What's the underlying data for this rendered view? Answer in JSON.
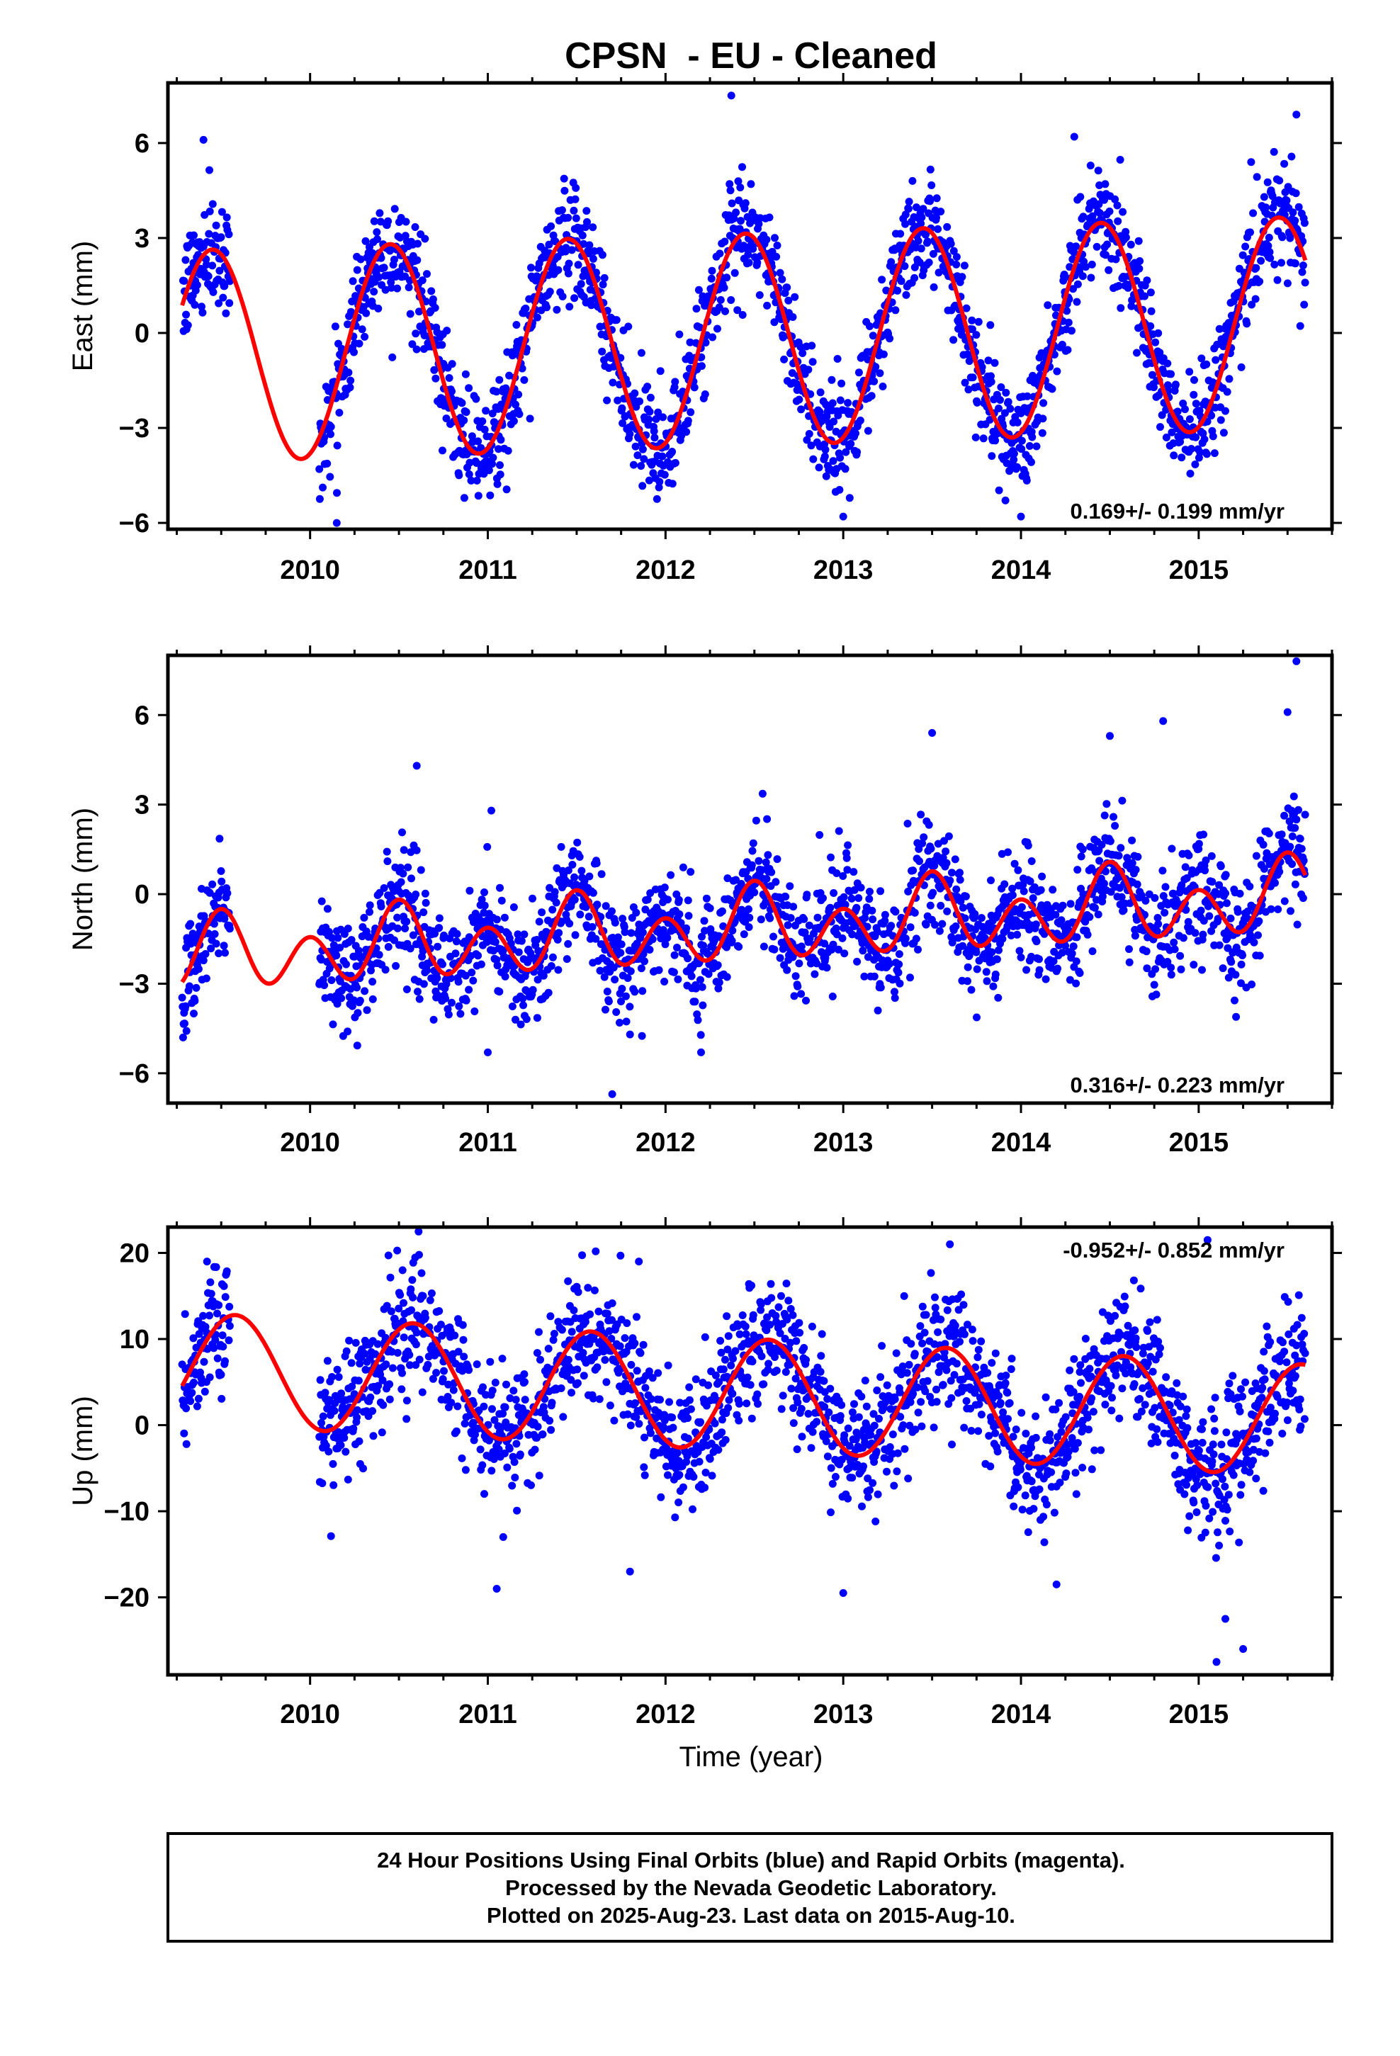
{
  "title": "CPSN  - EU - Cleaned",
  "colors": {
    "points": "#0000ff",
    "model": "#ff0000",
    "frame": "#000000"
  },
  "xlabel": "Time (year)",
  "footer": {
    "line1": "24 Hour Positions Using Final Orbits (blue) and Rapid Orbits (magenta).",
    "line2": "Processed by the Nevada Geodetic Laboratory.",
    "line3": "Plotted on 2025-Aug-23. Last data on 2015-Aug-10."
  },
  "chart_data": [
    {
      "type": "scatter",
      "name": "east",
      "ylabel": "East (mm)",
      "xlim": [
        2009.2,
        2015.75
      ],
      "ylim": [
        -6.2,
        7.9
      ],
      "xticks": [
        2010,
        2011,
        2012,
        2013,
        2014,
        2015
      ],
      "yticks": [
        -6,
        -3,
        0,
        3,
        6
      ],
      "rate_text": "0.169+/- 0.199 mm/yr",
      "data_start": 2009.28,
      "data_gap": [
        2009.55,
        2010.05
      ],
      "data_end": 2015.6,
      "model": {
        "offset": -0.2,
        "trend": 0.169,
        "annual_amp": 3.35,
        "annual_peak": 0.45,
        "semi_amp": 0.0,
        "semi_peak": 0.0
      },
      "scatter_sd": 0.85,
      "outliers": [
        [
          2009.4,
          6.1
        ],
        [
          2012.37,
          7.5
        ],
        [
          2013.0,
          -5.8
        ],
        [
          2014.3,
          6.2
        ],
        [
          2015.55,
          6.9
        ],
        [
          2010.15,
          -6.0
        ],
        [
          2014.0,
          -5.8
        ]
      ]
    },
    {
      "type": "scatter",
      "name": "north",
      "ylabel": "North (mm)",
      "xlim": [
        2009.2,
        2015.75
      ],
      "ylim": [
        -7.0,
        8.0
      ],
      "xticks": [
        2010,
        2011,
        2012,
        2013,
        2014,
        2015
      ],
      "yticks": [
        -6,
        -3,
        0,
        3,
        6
      ],
      "rate_text": "0.316+/- 0.223 mm/yr",
      "data_start": 2009.28,
      "data_gap": [
        2009.55,
        2010.05
      ],
      "data_end": 2015.6,
      "model": {
        "offset": -1.1,
        "trend": 0.316,
        "annual_amp": 0.55,
        "annual_peak": 0.5,
        "semi_amp": 1.0,
        "semi_peak": 0.5
      },
      "scatter_sd": 0.95,
      "outliers": [
        [
          2010.6,
          4.3
        ],
        [
          2011.0,
          -5.3
        ],
        [
          2011.7,
          -6.7
        ],
        [
          2011.8,
          -4.7
        ],
        [
          2012.2,
          -5.3
        ],
        [
          2013.5,
          5.4
        ],
        [
          2014.5,
          5.3
        ],
        [
          2014.8,
          5.8
        ],
        [
          2015.5,
          6.1
        ],
        [
          2015.55,
          7.8
        ],
        [
          2011.02,
          2.8
        ]
      ]
    },
    {
      "type": "scatter",
      "name": "up",
      "ylabel": "Up (mm)",
      "xlim": [
        2009.2,
        2015.75
      ],
      "ylim": [
        -29,
        23
      ],
      "xticks": [
        2010,
        2011,
        2012,
        2013,
        2014,
        2015
      ],
      "yticks": [
        -20,
        -10,
        0,
        10,
        20
      ],
      "rate_text": "-0.952+/- 0.852 mm/yr",
      "data_start": 2009.28,
      "data_gap": [
        2009.55,
        2010.05
      ],
      "data_end": 2015.6,
      "model": {
        "offset": 3.5,
        "trend": -0.952,
        "annual_amp": 6.5,
        "annual_peak": 0.58,
        "semi_amp": 0.0,
        "semi_peak": 0.0
      },
      "scatter_sd": 3.6,
      "outliers": [
        [
          2009.42,
          19.0
        ],
        [
          2011.05,
          -19.0
        ],
        [
          2011.8,
          -17.0
        ],
        [
          2011.85,
          19.0
        ],
        [
          2013.0,
          -19.5
        ],
        [
          2013.6,
          21.0
        ],
        [
          2014.2,
          -18.5
        ],
        [
          2015.05,
          21.5
        ],
        [
          2015.1,
          -27.5
        ],
        [
          2015.15,
          -22.5
        ],
        [
          2015.25,
          -26.0
        ]
      ]
    }
  ]
}
